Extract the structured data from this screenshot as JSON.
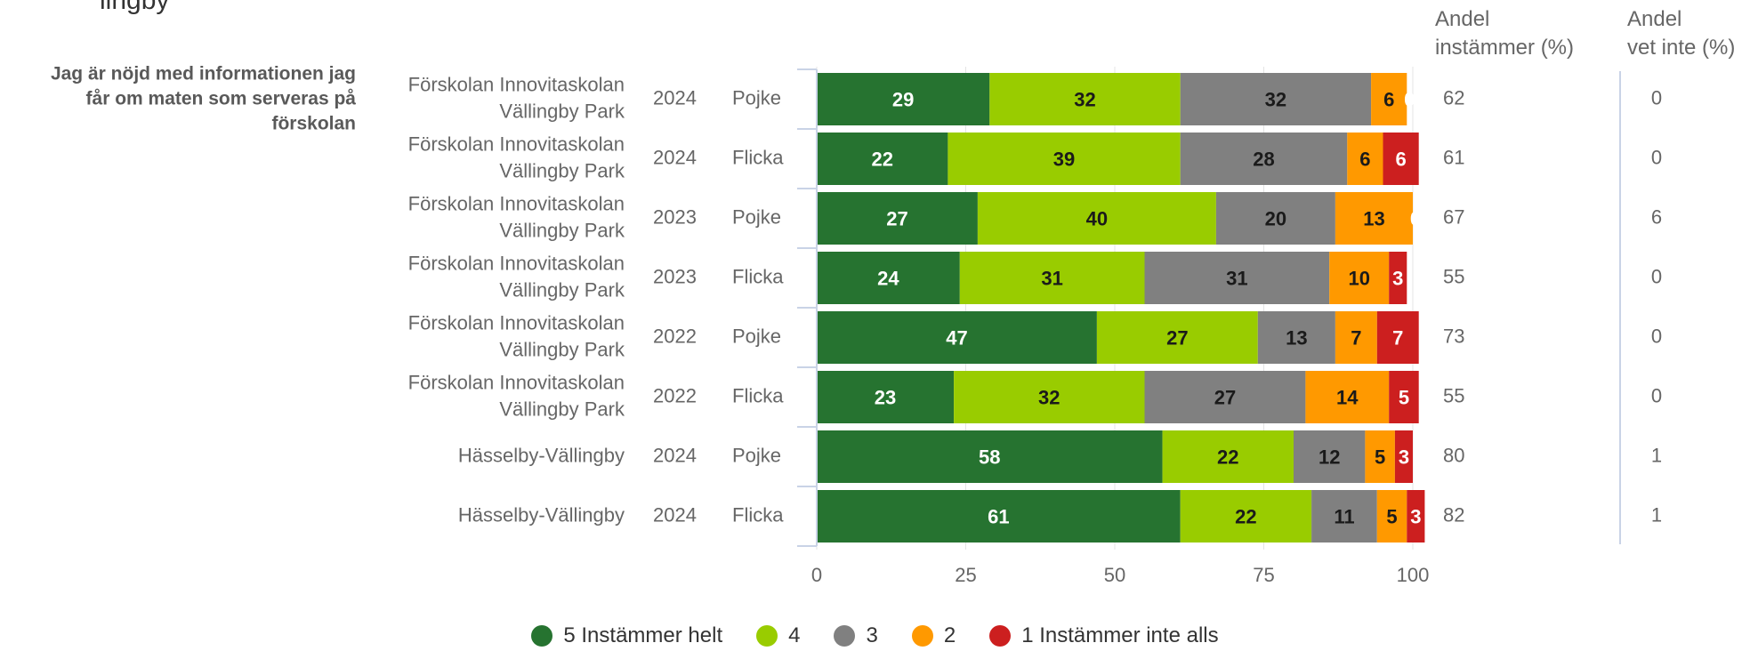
{
  "top_text": "lingby",
  "column_headers": {
    "instammer": [
      "Andel",
      "instämmer (%)"
    ],
    "vet_inte": [
      "Andel",
      "vet inte (%)"
    ]
  },
  "chart_data": {
    "type": "bar",
    "orientation": "horizontal",
    "stacked": true,
    "question": "Jag är nöjd med informationen jag får om maten som serveras på förskolan",
    "question_lines": [
      "Jag är nöjd med informationen jag",
      "får om maten som serveras på",
      "förskolan"
    ],
    "rows": [
      {
        "unit": [
          "Förskolan Innovitaskolan",
          "Vällingby Park"
        ],
        "year": "2024",
        "gender": "Pojke",
        "values": [
          29,
          32,
          32,
          6,
          0
        ],
        "instammer": "62",
        "vet_inte": "0"
      },
      {
        "unit": [
          "Förskolan Innovitaskolan",
          "Vällingby Park"
        ],
        "year": "2024",
        "gender": "Flicka",
        "values": [
          22,
          39,
          28,
          6,
          6
        ],
        "instammer": "61",
        "vet_inte": "0"
      },
      {
        "unit": [
          "Förskolan Innovitaskolan",
          "Vällingby Park"
        ],
        "year": "2023",
        "gender": "Pojke",
        "values": [
          27,
          40,
          20,
          13,
          0
        ],
        "instammer": "67",
        "vet_inte": "6"
      },
      {
        "unit": [
          "Förskolan Innovitaskolan",
          "Vällingby Park"
        ],
        "year": "2023",
        "gender": "Flicka",
        "values": [
          24,
          31,
          31,
          10,
          3
        ],
        "instammer": "55",
        "vet_inte": "0"
      },
      {
        "unit": [
          "Förskolan Innovitaskolan",
          "Vällingby Park"
        ],
        "year": "2022",
        "gender": "Pojke",
        "values": [
          47,
          27,
          13,
          7,
          7
        ],
        "instammer": "73",
        "vet_inte": "0"
      },
      {
        "unit": [
          "Förskolan Innovitaskolan",
          "Vällingby Park"
        ],
        "year": "2022",
        "gender": "Flicka",
        "values": [
          23,
          32,
          27,
          14,
          5
        ],
        "instammer": "55",
        "vet_inte": "0"
      },
      {
        "unit": [
          "Hässelby-Vällingby"
        ],
        "year": "2024",
        "gender": "Pojke",
        "values": [
          58,
          22,
          12,
          5,
          3
        ],
        "instammer": "80",
        "vet_inte": "1"
      },
      {
        "unit": [
          "Hässelby-Vällingby"
        ],
        "year": "2024",
        "gender": "Flicka",
        "values": [
          61,
          22,
          11,
          5,
          3
        ],
        "instammer": "82",
        "vet_inte": "1"
      }
    ],
    "series": [
      {
        "name": "5 Instämmer helt",
        "color": "#267330",
        "label_color": "#ffffff"
      },
      {
        "name": "4",
        "color": "#99cc00",
        "label_color": "#1a1a1a"
      },
      {
        "name": "3",
        "color": "#808080",
        "label_color": "#1a1a1a"
      },
      {
        "name": "2",
        "color": "#ff9900",
        "label_color": "#1a1a1a"
      },
      {
        "name": "1 Instämmer inte alls",
        "color": "#cc1f1f",
        "label_color": "#ffffff"
      }
    ],
    "x_ticks": [
      0,
      25,
      50,
      75,
      100
    ],
    "xlim": [
      0,
      100
    ],
    "legend_position": "bottom"
  }
}
